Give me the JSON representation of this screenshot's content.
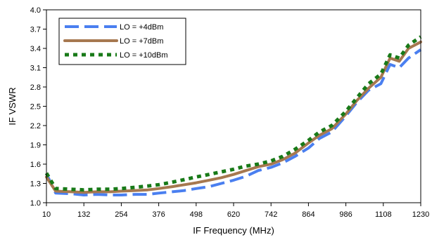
{
  "chart_data": {
    "type": "line",
    "title": "",
    "xlabel": "IF Frequency (MHz)",
    "ylabel": "IF VSWR",
    "xlim": [
      10,
      1230
    ],
    "ylim": [
      1.0,
      4.0
    ],
    "x_ticks": [
      10,
      132,
      254,
      376,
      498,
      620,
      742,
      864,
      986,
      1108,
      1230
    ],
    "y_ticks": [
      1.0,
      1.3,
      1.6,
      1.9,
      2.2,
      2.5,
      2.8,
      3.1,
      3.4,
      3.7,
      4.0
    ],
    "grid": false,
    "legend_position": "top-left",
    "series": [
      {
        "name": "LO = +4dBm",
        "color": "#4a7ff0",
        "dash": "long-dash",
        "x": [
          10,
          40,
          90,
          132,
          175,
          220,
          254,
          300,
          340,
          376,
          420,
          460,
          498,
          540,
          580,
          620,
          660,
          700,
          742,
          780,
          820,
          864,
          900,
          940,
          986,
          1020,
          1060,
          1100,
          1130,
          1160,
          1190,
          1230
        ],
        "y": [
          1.45,
          1.15,
          1.14,
          1.12,
          1.13,
          1.12,
          1.12,
          1.13,
          1.13,
          1.15,
          1.17,
          1.19,
          1.22,
          1.25,
          1.3,
          1.35,
          1.41,
          1.5,
          1.55,
          1.62,
          1.72,
          1.85,
          2.0,
          2.1,
          2.35,
          2.55,
          2.75,
          2.85,
          3.15,
          3.1,
          3.25,
          3.38
        ]
      },
      {
        "name": "LO = +7dBm",
        "color": "#a67850",
        "dash": "solid",
        "x": [
          10,
          40,
          90,
          132,
          175,
          220,
          254,
          300,
          340,
          376,
          420,
          460,
          498,
          540,
          580,
          620,
          660,
          700,
          742,
          780,
          820,
          864,
          900,
          940,
          986,
          1020,
          1060,
          1100,
          1130,
          1160,
          1190,
          1230
        ],
        "y": [
          1.4,
          1.18,
          1.17,
          1.16,
          1.17,
          1.17,
          1.18,
          1.19,
          1.2,
          1.22,
          1.25,
          1.28,
          1.31,
          1.35,
          1.39,
          1.44,
          1.5,
          1.56,
          1.6,
          1.67,
          1.77,
          1.93,
          2.05,
          2.15,
          2.38,
          2.58,
          2.78,
          2.95,
          3.25,
          3.2,
          3.4,
          3.5
        ]
      },
      {
        "name": "LO = +10dBm",
        "color": "#187a18",
        "dash": "dotted",
        "x": [
          10,
          40,
          90,
          132,
          175,
          220,
          254,
          300,
          340,
          376,
          420,
          460,
          498,
          540,
          580,
          620,
          660,
          700,
          742,
          780,
          820,
          864,
          900,
          940,
          986,
          1020,
          1060,
          1100,
          1130,
          1160,
          1190,
          1230
        ],
        "y": [
          1.46,
          1.22,
          1.21,
          1.2,
          1.21,
          1.21,
          1.22,
          1.24,
          1.26,
          1.28,
          1.32,
          1.36,
          1.4,
          1.44,
          1.48,
          1.52,
          1.57,
          1.6,
          1.65,
          1.72,
          1.83,
          1.97,
          2.1,
          2.2,
          2.42,
          2.62,
          2.85,
          3.0,
          3.3,
          3.25,
          3.45,
          3.58
        ]
      }
    ]
  }
}
